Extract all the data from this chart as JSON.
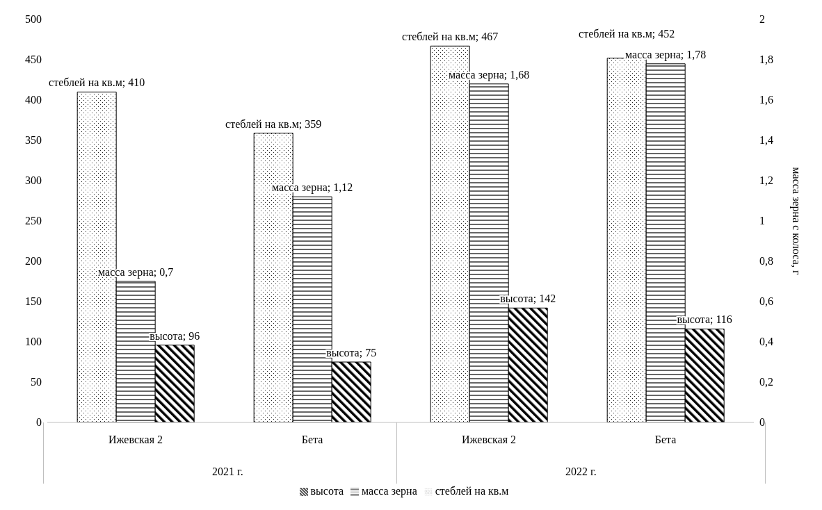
{
  "chart_data": {
    "type": "bar",
    "categories": [
      "Ижевская 2",
      "Бета",
      "Ижевская 2",
      "Бета"
    ],
    "annotations": [
      "2021 г.",
      "2022 г."
    ],
    "y2label": "масса зерна с колоса, г",
    "series": [
      {
        "name": "стеблей на кв.м",
        "color": "#000000",
        "values": [
          410,
          359,
          467,
          452
        ],
        "value_labels": [
          "стеблей на кв.м; 410",
          "стеблей на кв.м; 359",
          "стеблей на кв.м; 467",
          "стеблей на кв.м; 452"
        ]
      },
      {
        "name": "масса зерна",
        "color": "#000000",
        "axis": "y2",
        "values": [
          0.7,
          1.12,
          1.68,
          1.78
        ],
        "value_labels": [
          "масса зерна; 0,7",
          "масса зерна; 1,12",
          "масса зерна; 1,68",
          "масса зерна; 1,78"
        ]
      },
      {
        "name": "высота",
        "color": "#000000",
        "values": [
          96,
          75,
          142,
          116
        ],
        "value_labels": [
          "высота; 96",
          "высота; 75",
          "высота; 142",
          "высота; 116"
        ]
      }
    ],
    "ylim": [
      0,
      500
    ],
    "yticks": [
      0,
      50,
      100,
      150,
      200,
      250,
      300,
      350,
      400,
      450,
      500
    ],
    "y2lim": [
      0,
      2
    ],
    "y2ticks": [
      0,
      {
        "value": 0.2,
        "label": "0,2"
      },
      {
        "value": 0.4,
        "label": "0,4"
      },
      {
        "value": 0.6,
        "label": "0,6"
      },
      {
        "value": 0.8,
        "label": "0,8"
      },
      1,
      {
        "value": 1.2,
        "label": "1,2"
      },
      {
        "value": 1.4,
        "label": "1,4"
      },
      {
        "value": 1.6,
        "label": "1,6"
      },
      {
        "value": 1.8,
        "label": "1,8"
      },
      2
    ],
    "grid": false,
    "legend": "bottom"
  }
}
